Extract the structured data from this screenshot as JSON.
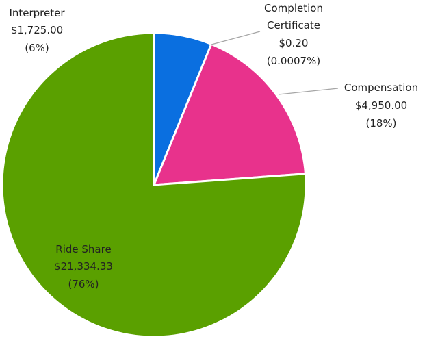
{
  "chart_data": {
    "type": "pie",
    "title": "",
    "slices": [
      {
        "name": "Interpreter",
        "value": 1725.0,
        "value_label": "$1,725.00",
        "percent_label": "(6%)",
        "color": "#0a6fe0"
      },
      {
        "name": "Compensation",
        "value": 4950.0,
        "value_label": "$4,950.00",
        "percent_label": "(18%)",
        "color": "#e8328c"
      },
      {
        "name": "Ride Share",
        "value": 21334.33,
        "value_label": "$21,334.33",
        "percent_label": "(76%)",
        "color": "#5aa000"
      },
      {
        "name": "Completion Certificate",
        "value": 0.2,
        "value_label": "$0.20",
        "percent_label": "(0.0007%)",
        "color": "#ffffff"
      }
    ],
    "legend": "none",
    "data_labels": "outside-with-leaders"
  },
  "labels": {
    "interpreter": {
      "line1": "Interpreter",
      "line2": "$1,725.00",
      "line3": "(6%)"
    },
    "completion": {
      "line1": "Completion",
      "line2": "Certificate",
      "line3": "$0.20",
      "line4": "(0.0007%)"
    },
    "compensation": {
      "line1": "Compensation",
      "line2": "$4,950.00",
      "line3": "(18%)"
    },
    "rideshare": {
      "line1": "Ride Share",
      "line2": "$21,334.33",
      "line3": "(76%)"
    }
  }
}
